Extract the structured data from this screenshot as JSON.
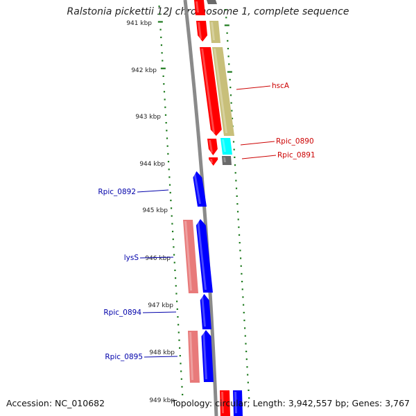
{
  "title": "Ralstonia pickettii 12J chromosome 1, complete sequence",
  "accession": "Accession: NC_010682",
  "topology": "Topology: circular; Length: 3,942,557 bp; Genes: 3,767",
  "colors": {
    "backbone": "#8a8a8a",
    "tick": "#1d7a1d",
    "red_gene": "#ff0000",
    "olive_gene": "#c8bf7a",
    "cyan_gene": "#00ffff",
    "gray_gene": "#6a6a6a",
    "blue_gene": "#0000ff",
    "pink_gene": "#e87a7a",
    "red_label": "#cc0000",
    "blue_label": "#0000aa"
  },
  "scale_labels": [
    "941 kbp",
    "942 kbp",
    "943 kbp",
    "944 kbp",
    "945 kbp",
    "946 kbp",
    "947 kbp",
    "948 kbp",
    "949 kbp"
  ],
  "gene_labels": [
    {
      "text": "hscA",
      "side": "right",
      "color": "red"
    },
    {
      "text": "Rpic_0890",
      "side": "right",
      "color": "red"
    },
    {
      "text": "Rpic_0891",
      "side": "right",
      "color": "red"
    },
    {
      "text": "Rpic_0892",
      "side": "left",
      "color": "blue"
    },
    {
      "text": "lysS",
      "side": "left",
      "color": "blue"
    },
    {
      "text": "Rpic_0894",
      "side": "left",
      "color": "blue"
    },
    {
      "text": "Rpic_0895",
      "side": "left",
      "color": "blue"
    }
  ]
}
